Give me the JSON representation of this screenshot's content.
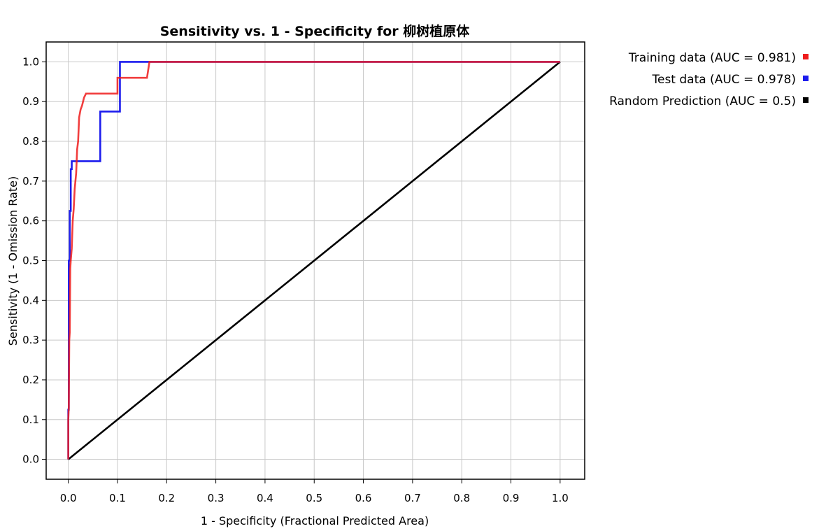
{
  "chart_data": {
    "type": "line",
    "title": "Sensitivity vs. 1 - Specificity for 柳树植原体",
    "xlabel": "1 - Specificity  (Fractional Predicted Area)",
    "ylabel": "Sensitivity  (1 - Omission Rate)",
    "xlim": [
      -0.045,
      1.05
    ],
    "ylim": [
      -0.05,
      1.05
    ],
    "xticks": [
      "0.0",
      "0.1",
      "0.2",
      "0.3",
      "0.4",
      "0.5",
      "0.6",
      "0.7",
      "0.8",
      "0.9",
      "1.0"
    ],
    "yticks": [
      "0.0",
      "0.1",
      "0.2",
      "0.3",
      "0.4",
      "0.5",
      "0.6",
      "0.7",
      "0.8",
      "0.9",
      "1.0"
    ],
    "grid": true,
    "legend_position": "outside-top-right",
    "series": [
      {
        "name": "Training data (AUC = 0.981)",
        "color": "#ee1c1c",
        "x": [
          0.0,
          0.0,
          0.001,
          0.002,
          0.003,
          0.004,
          0.005,
          0.007,
          0.009,
          0.011,
          0.013,
          0.016,
          0.018,
          0.02,
          0.022,
          0.025,
          0.028,
          0.032,
          0.036,
          0.06,
          0.1,
          0.1,
          0.13,
          0.16,
          0.165,
          0.2,
          0.5,
          1.0
        ],
        "y": [
          0.0,
          0.1,
          0.13,
          0.3,
          0.32,
          0.48,
          0.5,
          0.53,
          0.6,
          0.63,
          0.68,
          0.72,
          0.78,
          0.8,
          0.86,
          0.88,
          0.89,
          0.91,
          0.92,
          0.92,
          0.92,
          0.96,
          0.96,
          0.96,
          1.0,
          1.0,
          1.0,
          1.0
        ]
      },
      {
        "name": "Test data (AUC = 0.978)",
        "color": "#1c1ced",
        "x": [
          0.0,
          0.0,
          0.001,
          0.001,
          0.003,
          0.003,
          0.005,
          0.005,
          0.007,
          0.007,
          0.065,
          0.065,
          0.105,
          0.105,
          0.16,
          1.0
        ],
        "y": [
          0.0,
          0.125,
          0.125,
          0.5,
          0.5,
          0.625,
          0.625,
          0.73,
          0.73,
          0.75,
          0.75,
          0.875,
          0.875,
          1.0,
          1.0,
          1.0
        ]
      },
      {
        "name": "Random Prediction (AUC = 0.5)",
        "color": "#000000",
        "x": [
          0.0,
          1.0
        ],
        "y": [
          0.0,
          1.0
        ]
      }
    ]
  }
}
